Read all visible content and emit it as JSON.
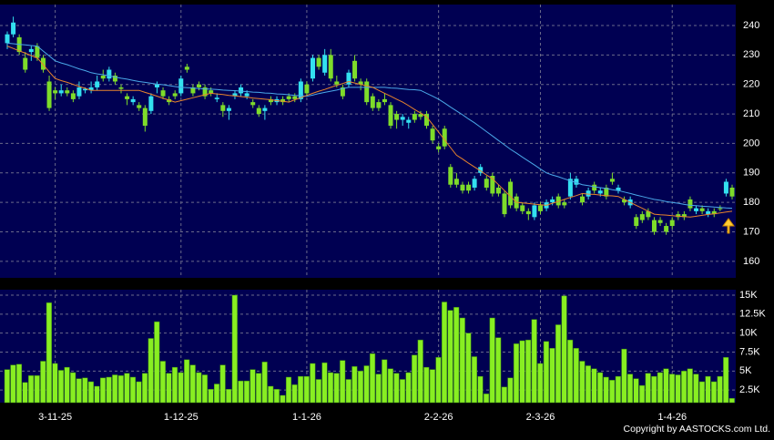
{
  "chart_data": {
    "type": "candlestick",
    "source": "Copyright by AASTOCKS.com Ltd.",
    "categories": [
      null,
      null,
      null,
      null,
      null,
      null,
      null,
      null,
      "3-11-25",
      null,
      null,
      null,
      null,
      null,
      null,
      null,
      null,
      null,
      null,
      null,
      null,
      null,
      null,
      null,
      null,
      null,
      null,
      null,
      null,
      "1-12-25",
      null,
      null,
      null,
      null,
      null,
      null,
      null,
      null,
      null,
      null,
      null,
      null,
      null,
      null,
      null,
      null,
      null,
      null,
      null,
      null,
      "1-1-26",
      null,
      null,
      null,
      null,
      null,
      null,
      null,
      null,
      null,
      null,
      null,
      null,
      null,
      null,
      null,
      null,
      null,
      null,
      null,
      null,
      null,
      "2-2-26",
      null,
      null,
      null,
      null,
      null,
      null,
      null,
      null,
      null,
      null,
      null,
      null,
      null,
      null,
      null,
      null,
      "2-3-26",
      null,
      null,
      null,
      null,
      null,
      null,
      null,
      null,
      null,
      null,
      null,
      null,
      null,
      null,
      null,
      null,
      null,
      null,
      null,
      null,
      null,
      "1-4-26",
      null,
      null,
      null,
      null,
      null,
      null,
      null,
      null,
      null,
      null
    ],
    "ohlc": [
      [
        234,
        238,
        232,
        237
      ],
      [
        237,
        243,
        236,
        241
      ],
      [
        236,
        237,
        230,
        231
      ],
      [
        229,
        231,
        224,
        225
      ],
      [
        231,
        233,
        228,
        232
      ],
      [
        233,
        234,
        228,
        229
      ],
      [
        229,
        230,
        224,
        225
      ],
      [
        221,
        223,
        211,
        212
      ],
      [
        218,
        219,
        215,
        217
      ],
      [
        217,
        220,
        216,
        218
      ],
      [
        218,
        219,
        216,
        217
      ],
      [
        217,
        218,
        214,
        215
      ],
      [
        216,
        221,
        215,
        219
      ],
      [
        218,
        219,
        217,
        218.5
      ],
      [
        218,
        221,
        217,
        219
      ],
      [
        219,
        223,
        218,
        221
      ],
      [
        223,
        225,
        221,
        222
      ],
      [
        222,
        226,
        221,
        225
      ],
      [
        223,
        224,
        220,
        221
      ],
      [
        219,
        220,
        217,
        218.5
      ],
      [
        216,
        217,
        213,
        215
      ],
      [
        214,
        216,
        213,
        215
      ],
      [
        213,
        214,
        211,
        212
      ],
      [
        212,
        213,
        204,
        206
      ],
      [
        211,
        217,
        210,
        216
      ],
      [
        219,
        221,
        217,
        220
      ],
      [
        218,
        219,
        215,
        216
      ],
      [
        215,
        216,
        213,
        214
      ],
      [
        217,
        218,
        215,
        216
      ],
      [
        217,
        223,
        216,
        222
      ],
      [
        226,
        227,
        224,
        225
      ],
      [
        219,
        220,
        216,
        217
      ],
      [
        220,
        221,
        218,
        219
      ],
      [
        219,
        220,
        215,
        216
      ],
      [
        218,
        219,
        216,
        217
      ],
      [
        215,
        217,
        214,
        215.5
      ],
      [
        213,
        214,
        209,
        211
      ],
      [
        211,
        213,
        208,
        212
      ],
      [
        216,
        218,
        215,
        217
      ],
      [
        217,
        220,
        216,
        219
      ],
      [
        216,
        218,
        215,
        217
      ],
      [
        214,
        215,
        212,
        213
      ],
      [
        212,
        213,
        209,
        210
      ],
      [
        211,
        213,
        208,
        212
      ],
      [
        215,
        216,
        213,
        214
      ],
      [
        214,
        216,
        213,
        215
      ],
      [
        215,
        216,
        213,
        214
      ],
      [
        216,
        217,
        214,
        215
      ],
      [
        216,
        217,
        214,
        215
      ],
      [
        215,
        222,
        214,
        221
      ],
      [
        220,
        221,
        216,
        217
      ],
      [
        222,
        230,
        221,
        229
      ],
      [
        229,
        230,
        225,
        226
      ],
      [
        224,
        232,
        223,
        230
      ],
      [
        230,
        232,
        221,
        222
      ],
      [
        221,
        223,
        219,
        220
      ],
      [
        219,
        220,
        215,
        216
      ],
      [
        220,
        225,
        219,
        224
      ],
      [
        228,
        230,
        221,
        222
      ],
      [
        221,
        222,
        218,
        220
      ],
      [
        221,
        222,
        213,
        214
      ],
      [
        216,
        217,
        211,
        212
      ],
      [
        214,
        215,
        211,
        212
      ],
      [
        215,
        217,
        213,
        214
      ],
      [
        213,
        214,
        205,
        206
      ],
      [
        210,
        211,
        205,
        208
      ],
      [
        208,
        210,
        206,
        209
      ],
      [
        207,
        209,
        205,
        208
      ],
      [
        210,
        211,
        207,
        208
      ],
      [
        210,
        211,
        208,
        209
      ],
      [
        210,
        211,
        205,
        206
      ],
      [
        205,
        206,
        200,
        201
      ],
      [
        199,
        200,
        197,
        198
      ],
      [
        205,
        206,
        198,
        199
      ],
      [
        192,
        193,
        185,
        186
      ],
      [
        188,
        190,
        185,
        186
      ],
      [
        186,
        187,
        183,
        184
      ],
      [
        186,
        187,
        183,
        184
      ],
      [
        185,
        189,
        184,
        188
      ],
      [
        190,
        193,
        189,
        192
      ],
      [
        188,
        189,
        184,
        185
      ],
      [
        189,
        190,
        182,
        183
      ],
      [
        185,
        186,
        182,
        183
      ],
      [
        183,
        184,
        175,
        176
      ],
      [
        187,
        188,
        178,
        179
      ],
      [
        182,
        183,
        177,
        178
      ],
      [
        179,
        180,
        176,
        177
      ],
      [
        177,
        178,
        174,
        176
      ],
      [
        175,
        180,
        174,
        179
      ],
      [
        179,
        180,
        176,
        177
      ],
      [
        178,
        181,
        177,
        180
      ],
      [
        180,
        182,
        179,
        181
      ],
      [
        182,
        183,
        178,
        179
      ],
      [
        180,
        181,
        178,
        179
      ],
      [
        182,
        190,
        181,
        188
      ],
      [
        186,
        189,
        185,
        188
      ],
      [
        182,
        183,
        179,
        180
      ],
      [
        182,
        185,
        181,
        184
      ],
      [
        186,
        187,
        183,
        184
      ],
      [
        183,
        185,
        182,
        184
      ],
      [
        185,
        186,
        181,
        182
      ],
      [
        188,
        190,
        186,
        187
      ],
      [
        184,
        186,
        183,
        185
      ],
      [
        181,
        182,
        179,
        180
      ],
      [
        179,
        182,
        178,
        181
      ],
      [
        175,
        176,
        171,
        172
      ],
      [
        176,
        177,
        173,
        174
      ],
      [
        177,
        178,
        174,
        175
      ],
      [
        174,
        175,
        169,
        170
      ],
      [
        174,
        175,
        172,
        173
      ],
      [
        172,
        173,
        169,
        170
      ],
      [
        174,
        175,
        171,
        172
      ],
      [
        176,
        177,
        174,
        175
      ],
      [
        176,
        177,
        174,
        175
      ],
      [
        181,
        182,
        177,
        178
      ],
      [
        177,
        179,
        176,
        178
      ],
      [
        178,
        179,
        176,
        177
      ],
      [
        176,
        178,
        175,
        177
      ],
      [
        177,
        178,
        175,
        176
      ],
      [
        178,
        179,
        177,
        178
      ],
      [
        183,
        188,
        182,
        187
      ],
      [
        185,
        186,
        181,
        182
      ]
    ],
    "up_color": "#33e0f0",
    "down_color": "#7edc2a",
    "moving_averages": [
      {
        "color": "#4aa8e8",
        "values": [
          234,
          233.8,
          233.6,
          233.4,
          233.2,
          233,
          231.3,
          229.7,
          228,
          227.3,
          226.7,
          226,
          225.3,
          224.7,
          224,
          223.6,
          223.3,
          222.9,
          222.5,
          222.1,
          221.8,
          221.4,
          221,
          220.7,
          220.4,
          220.1,
          219.9,
          219.6,
          219.3,
          219,
          218.9,
          218.8,
          218.6,
          218.5,
          218.4,
          218.3,
          218.1,
          218,
          217.9,
          217.7,
          217.6,
          217.4,
          217.3,
          217.1,
          217,
          216.8,
          216.7,
          216.5,
          216.3,
          216.2,
          216,
          216.4,
          216.9,
          217.3,
          217.7,
          218.1,
          218.6,
          219,
          219,
          219,
          219,
          219,
          219,
          219,
          218.8,
          218.7,
          218.5,
          218.3,
          218.2,
          218,
          217,
          216,
          215,
          213.7,
          212.3,
          211,
          209.7,
          208.3,
          207,
          205.5,
          204,
          202.5,
          201,
          199.5,
          198,
          196.7,
          195.3,
          194,
          192.7,
          191.3,
          190,
          189.3,
          188.7,
          188,
          187.3,
          186.7,
          186,
          185.7,
          185.3,
          185,
          184.7,
          184.3,
          184,
          183.5,
          183,
          182.5,
          182,
          181.5,
          181,
          180.7,
          180.3,
          180,
          179.7,
          179.3,
          179,
          178.9,
          178.7,
          178.6,
          178.4,
          178.3,
          178.1,
          178
        ]
      },
      {
        "color": "#e8842c",
        "values": [
          233,
          232.2,
          231.4,
          230.6,
          229.8,
          229,
          226.7,
          224.3,
          222,
          221.3,
          220.7,
          220,
          219.3,
          218.7,
          218,
          218,
          218,
          218,
          218,
          218,
          218,
          218,
          218,
          217.3,
          216.7,
          216,
          215.3,
          214.7,
          214,
          214.5,
          215,
          215.5,
          216,
          216.5,
          217,
          216.8,
          216.6,
          216.3,
          216.1,
          215.9,
          215.7,
          215.4,
          215.2,
          215,
          214.8,
          214.5,
          214.3,
          214,
          214.8,
          215.5,
          216.3,
          217,
          217.7,
          218.3,
          219,
          219.7,
          220.3,
          221,
          220.5,
          220,
          219.5,
          219,
          218,
          217,
          216,
          215,
          214,
          212.8,
          211.5,
          210.3,
          209,
          206.4,
          203.8,
          201.2,
          198.6,
          196,
          194.7,
          193.3,
          192,
          190.7,
          189.3,
          188,
          186,
          184,
          182,
          180,
          179.8,
          179.6,
          179.4,
          179.2,
          179,
          179.7,
          180.3,
          181,
          181.7,
          182.3,
          183,
          182.8,
          182.7,
          182.5,
          182.3,
          182.2,
          182,
          181,
          180,
          179,
          178,
          177,
          176,
          175.8,
          175.7,
          175.5,
          175.3,
          175.2,
          175,
          175.3,
          175.6,
          175.9,
          176.1,
          176.4,
          176.7,
          177
        ]
      }
    ],
    "ylim": [
      154.4,
      247.1
    ],
    "yticks": [
      160,
      170,
      180,
      190,
      200,
      210,
      220,
      230,
      240
    ],
    "grid": true,
    "volume": {
      "color": "#88ee22",
      "values": [
        5200,
        5800,
        5900,
        3500,
        4400,
        4400,
        6300,
        14000,
        6000,
        5100,
        5500,
        4800,
        4000,
        4100,
        3600,
        3000,
        4100,
        4200,
        4500,
        4400,
        4700,
        4200,
        3600,
        4700,
        9300,
        11500,
        6300,
        4700,
        5500,
        4800,
        6500,
        5800,
        4800,
        4500,
        2600,
        3300,
        5800,
        2600,
        15000,
        3700,
        3700,
        5200,
        4700,
        6200,
        3000,
        2600,
        1800,
        4200,
        3200,
        4300,
        4300,
        6000,
        3900,
        6100,
        4800,
        4700,
        6400,
        3900,
        5600,
        5000,
        5700,
        7300,
        4600,
        6500,
        5300,
        4700,
        3900,
        4800,
        7100,
        9100,
        5500,
        5200,
        6800,
        14100,
        13000,
        13400,
        12000,
        10000,
        6900,
        4300,
        2000,
        12000,
        9400,
        2900,
        4100,
        8600,
        9000,
        9100,
        11800,
        6000,
        8900,
        8000,
        11100,
        14900,
        9100,
        8000,
        6300,
        5700,
        5300,
        4800,
        4200,
        3800,
        4300,
        7900,
        4600,
        4000,
        3100,
        4700,
        4300,
        4800,
        5300,
        4600,
        4500,
        5000,
        5300,
        4600,
        3600,
        4300,
        3600,
        4300,
        6800,
        1400
      ],
      "ylim": [
        840,
        15720
      ],
      "yticks": [
        {
          "value": 2500,
          "label": "2.5K"
        },
        {
          "value": 5000,
          "label": "5K"
        },
        {
          "value": 7500,
          "label": "7.5K"
        },
        {
          "value": 10000,
          "label": "10K"
        },
        {
          "value": 12500,
          "label": "12.5K"
        },
        {
          "value": 15000,
          "label": "15K"
        }
      ]
    }
  }
}
